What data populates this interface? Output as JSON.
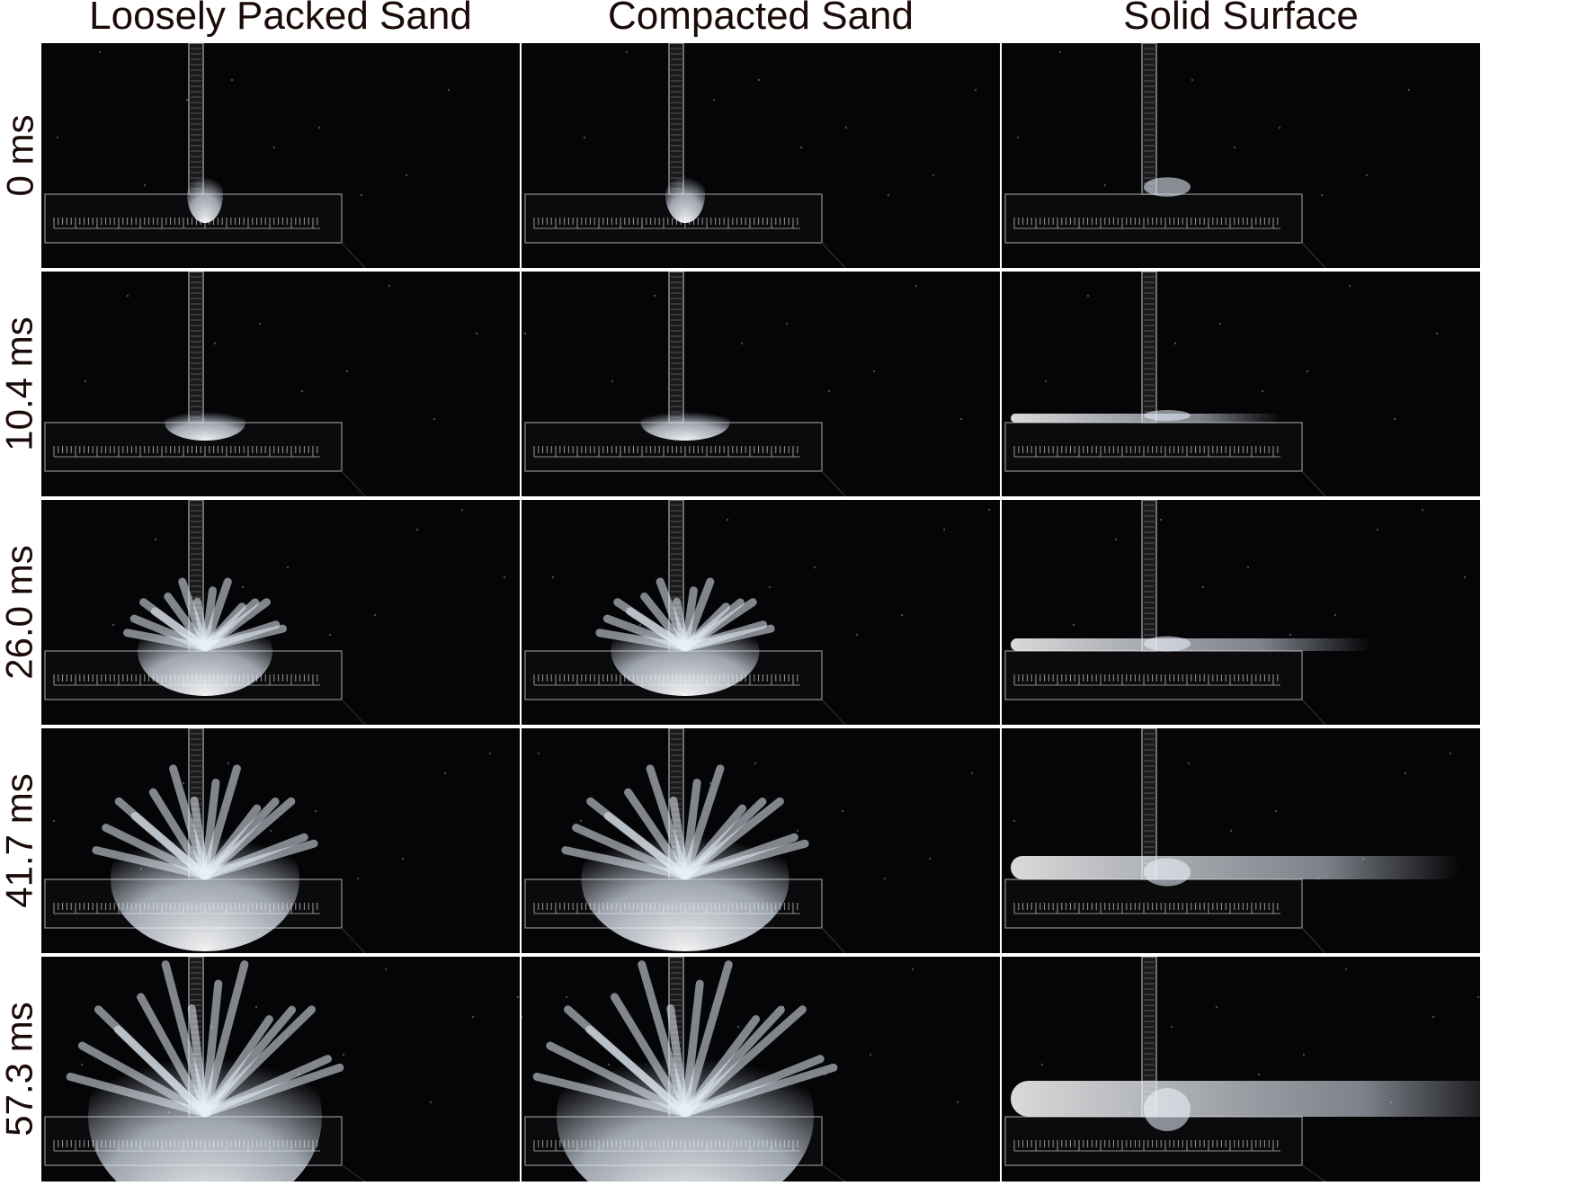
{
  "columns": [
    {
      "label": "Loosely Packed Sand",
      "condition": "loose"
    },
    {
      "label": "Compacted Sand",
      "condition": "compacted"
    },
    {
      "label": "Solid Surface",
      "condition": "solid"
    }
  ],
  "rows": [
    {
      "label": "0 ms",
      "stage": 0
    },
    {
      "label": "10.4 ms",
      "stage": 1
    },
    {
      "label": "26.0 ms",
      "stage": 2
    },
    {
      "label": "41.7 ms",
      "stage": 3
    },
    {
      "label": "57.3 ms",
      "stage": 4
    }
  ],
  "colors": {
    "background": "#050507",
    "plume": "#dfe8f4",
    "rod": "#8f8f92",
    "text": "#1a0a08"
  }
}
